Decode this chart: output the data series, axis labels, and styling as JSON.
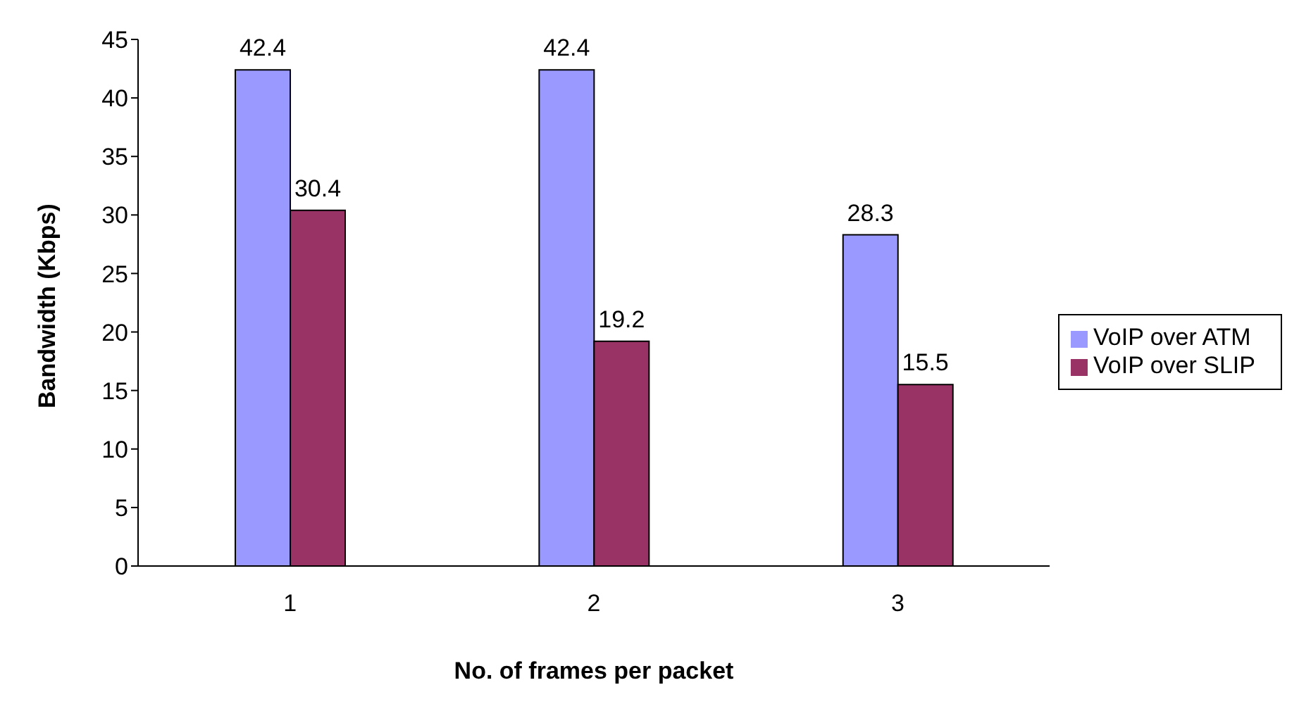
{
  "chart_data": {
    "type": "bar",
    "xlabel": "No. of frames per packet",
    "ylabel": "Bandwidth (Kbps)",
    "categories": [
      "1",
      "2",
      "3"
    ],
    "series": [
      {
        "name": "VoIP over ATM",
        "color": "#9999ff",
        "values": [
          42.4,
          42.4,
          28.3
        ]
      },
      {
        "name": "VoIP over SLIP",
        "color": "#993366",
        "values": [
          30.4,
          19.2,
          15.5
        ]
      }
    ],
    "ylim": [
      0,
      45
    ],
    "yticks": [
      0,
      5,
      10,
      15,
      20,
      25,
      30,
      35,
      40,
      45
    ],
    "grid": false,
    "legend": "right",
    "data_labels": true
  }
}
